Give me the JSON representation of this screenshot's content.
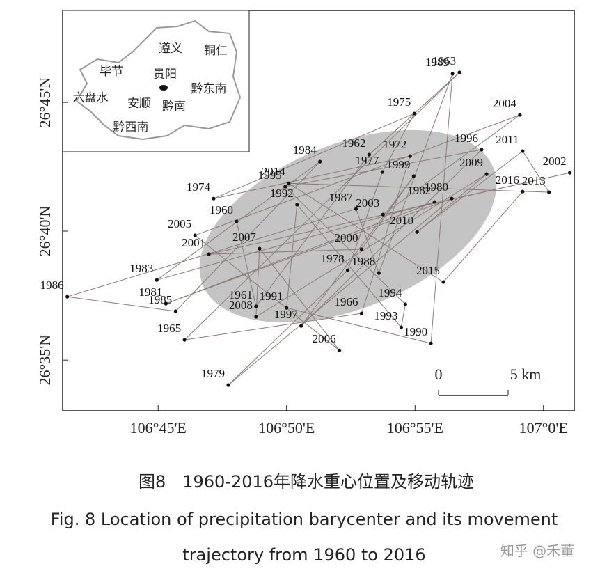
{
  "chart_data": {
    "type": "scatter",
    "point_labels": [
      "1960",
      "1961",
      "1962",
      "1963",
      "1965",
      "1966",
      "1972",
      "1974",
      "1975",
      "1977",
      "1978",
      "1979",
      "1980",
      "1981",
      "1982",
      "1983",
      "1984",
      "1985",
      "1986",
      "1987",
      "1988",
      "1989",
      "1990",
      "1991",
      "1992",
      "1993",
      "1994",
      "1995",
      "1996",
      "1997",
      "1999",
      "2000",
      "2001",
      "2002",
      "2003",
      "2004",
      "2005",
      "2006",
      "2007",
      "2008",
      "2009",
      "2010",
      "2011",
      "2013",
      "2014",
      "2015",
      "2016"
    ],
    "x": [
      106.8009,
      106.8135,
      106.8869,
      106.9455,
      106.7671,
      106.882,
      106.9135,
      106.786,
      106.9162,
      106.8955,
      106.873,
      106.7955,
      106.9405,
      106.755,
      106.9293,
      106.7491,
      106.855,
      106.7613,
      106.691,
      106.8784,
      106.8932,
      106.941,
      106.927,
      106.8333,
      106.8401,
      106.9077,
      106.9104,
      106.8324,
      106.9599,
      106.8428,
      106.9158,
      106.882,
      106.7829,
      107.0171,
      106.8959,
      106.9847,
      106.7739,
      106.8676,
      106.8158,
      106.8135,
      106.9631,
      106.918,
      106.9865,
      107.0036,
      106.8347,
      106.9351,
      106.9865
    ],
    "values": [
      26.673,
      26.618,
      26.7162,
      26.7694,
      26.5964,
      26.6135,
      26.7153,
      26.6878,
      26.7428,
      26.705,
      26.6414,
      26.5671,
      26.6878,
      26.6198,
      26.6856,
      26.6351,
      26.7117,
      26.6149,
      26.6243,
      26.6811,
      26.6396,
      26.7685,
      26.5941,
      26.6171,
      26.6838,
      26.6045,
      26.6194,
      26.6955,
      26.7194,
      26.6054,
      26.7023,
      26.655,
      26.6518,
      26.7045,
      26.6775,
      26.7419,
      26.664,
      26.5896,
      26.6554,
      26.6113,
      26.7036,
      26.6662,
      26.7185,
      26.6919,
      26.6977,
      26.6338,
      26.6923
    ],
    "color": "#111111",
    "line_color": "#8a7a76",
    "xlim": [
      106.688,
      107.02
    ],
    "ylim": [
      26.5505,
      26.8095
    ],
    "xticks": [
      {
        "value": 106.75,
        "label": "106°45'E"
      },
      {
        "value": 106.8333,
        "label": "106°50'E"
      },
      {
        "value": 106.9167,
        "label": "106°55'E"
      },
      {
        "value": 107,
        "label": "107°0'E"
      }
    ],
    "yticks": [
      {
        "value": 26.5833,
        "label": "26°35'N"
      },
      {
        "value": 26.6667,
        "label": "26°40'N"
      },
      {
        "value": 26.75,
        "label": "26°45'N"
      }
    ],
    "scale_bar": [
      "0",
      "5 km"
    ],
    "inset_labels": [
      "遵义",
      "铜仁",
      "毕节",
      "贵阳",
      "六盘水",
      "安顺",
      "黔南",
      "黔东南",
      "黔西南"
    ]
  },
  "caption": {
    "cn": "图8　1960-2016年降水重心位置及移动轨迹",
    "en": [
      "Fig. 8   Location of precipitation barycenter and its movement",
      "trajectory from 1960 to 2016"
    ]
  },
  "watermark": "知乎 @禾董"
}
